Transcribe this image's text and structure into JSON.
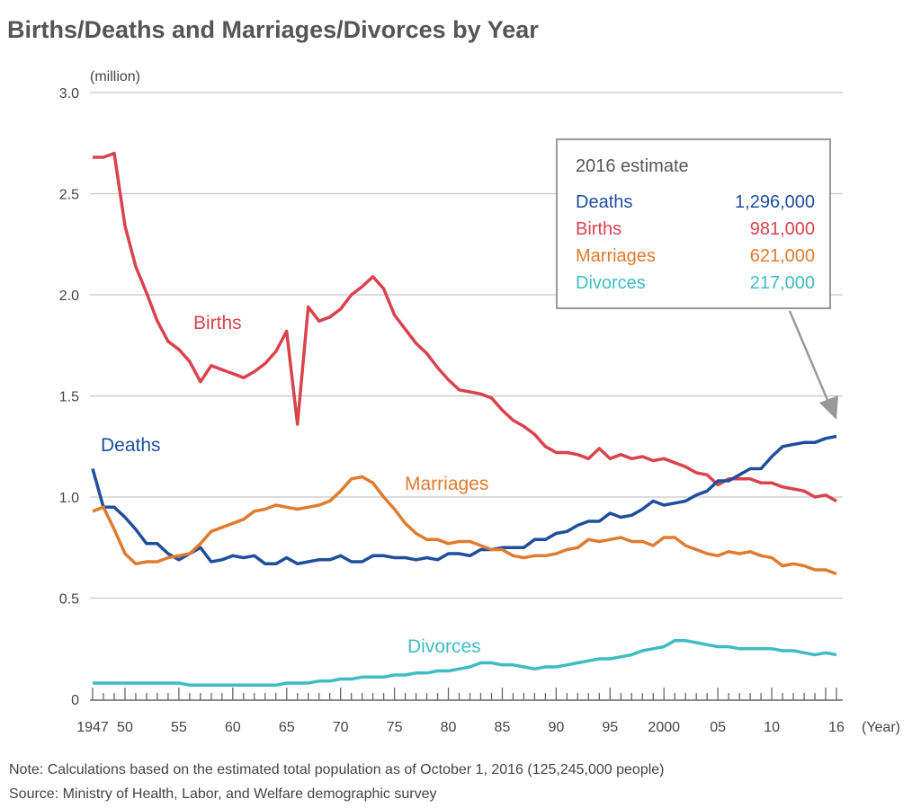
{
  "title": "Births/Deaths and Marriages/Divorces by Year",
  "note": "Note: Calculations based on the estimated total population as of October 1, 2016 (125,245,000 people)",
  "source": "Source: Ministry of Health, Labor, and Welfare demographic survey",
  "legend_box": {
    "heading": "2016 estimate",
    "rows": [
      {
        "label": "Deaths",
        "value": "1,296,000",
        "color": "#1f4e9c"
      },
      {
        "label": "Births",
        "value": "981,000",
        "color": "#d9434e"
      },
      {
        "label": "Marriages",
        "value": "621,000",
        "color": "#e07b2f"
      },
      {
        "label": "Divorces",
        "value": "217,000",
        "color": "#3fbcc2"
      }
    ]
  },
  "chart_data": {
    "type": "line",
    "title": "Births/Deaths and Marriages/Divorces by Year",
    "ylabel": "(million)",
    "xlabel": "(Year)",
    "ylim": [
      0,
      3.0
    ],
    "xlim": [
      1947,
      2016
    ],
    "grid": true,
    "yticks": [
      "0",
      "0.5",
      "1.0",
      "1.5",
      "2.0",
      "2.5",
      "3.0"
    ],
    "xtick_labels": [
      {
        "year": 1947,
        "label": "1947"
      },
      {
        "year": 1950,
        "label": "50"
      },
      {
        "year": 1955,
        "label": "55"
      },
      {
        "year": 1960,
        "label": "60"
      },
      {
        "year": 1965,
        "label": "65"
      },
      {
        "year": 1970,
        "label": "70"
      },
      {
        "year": 1975,
        "label": "75"
      },
      {
        "year": 1980,
        "label": "80"
      },
      {
        "year": 1985,
        "label": "85"
      },
      {
        "year": 1990,
        "label": "90"
      },
      {
        "year": 1995,
        "label": "95"
      },
      {
        "year": 2000,
        "label": "2000"
      },
      {
        "year": 2005,
        "label": "05"
      },
      {
        "year": 2010,
        "label": "10"
      },
      {
        "year": 2016,
        "label": "16"
      }
    ],
    "x_start": 1947,
    "series": [
      {
        "name": "Births",
        "color": "#d9434e",
        "values": [
          2.68,
          2.68,
          2.7,
          2.34,
          2.14,
          2.01,
          1.87,
          1.77,
          1.73,
          1.67,
          1.57,
          1.65,
          1.63,
          1.61,
          1.59,
          1.62,
          1.66,
          1.72,
          1.82,
          1.36,
          1.94,
          1.87,
          1.89,
          1.93,
          2.0,
          2.04,
          2.09,
          2.03,
          1.9,
          1.83,
          1.76,
          1.71,
          1.64,
          1.58,
          1.53,
          1.52,
          1.51,
          1.49,
          1.43,
          1.38,
          1.35,
          1.31,
          1.25,
          1.22,
          1.22,
          1.21,
          1.19,
          1.24,
          1.19,
          1.21,
          1.19,
          1.2,
          1.18,
          1.19,
          1.17,
          1.15,
          1.12,
          1.11,
          1.06,
          1.09,
          1.09,
          1.09,
          1.07,
          1.07,
          1.05,
          1.04,
          1.03,
          1.0,
          1.01,
          0.98
        ]
      },
      {
        "name": "Deaths",
        "color": "#1f4e9c",
        "values": [
          1.14,
          0.95,
          0.95,
          0.9,
          0.84,
          0.77,
          0.77,
          0.72,
          0.69,
          0.72,
          0.75,
          0.68,
          0.69,
          0.71,
          0.7,
          0.71,
          0.67,
          0.67,
          0.7,
          0.67,
          0.68,
          0.69,
          0.69,
          0.71,
          0.68,
          0.68,
          0.71,
          0.71,
          0.7,
          0.7,
          0.69,
          0.7,
          0.69,
          0.72,
          0.72,
          0.71,
          0.74,
          0.74,
          0.75,
          0.75,
          0.75,
          0.79,
          0.79,
          0.82,
          0.83,
          0.86,
          0.88,
          0.88,
          0.92,
          0.9,
          0.91,
          0.94,
          0.98,
          0.96,
          0.97,
          0.98,
          1.01,
          1.03,
          1.08,
          1.08,
          1.11,
          1.14,
          1.14,
          1.2,
          1.25,
          1.26,
          1.27,
          1.27,
          1.29,
          1.3
        ]
      },
      {
        "name": "Marriages",
        "color": "#e07b2f",
        "values": [
          0.93,
          0.95,
          0.84,
          0.72,
          0.67,
          0.68,
          0.68,
          0.7,
          0.71,
          0.72,
          0.77,
          0.83,
          0.85,
          0.87,
          0.89,
          0.93,
          0.94,
          0.96,
          0.95,
          0.94,
          0.95,
          0.96,
          0.98,
          1.03,
          1.09,
          1.1,
          1.07,
          1.0,
          0.94,
          0.87,
          0.82,
          0.79,
          0.79,
          0.77,
          0.78,
          0.78,
          0.76,
          0.74,
          0.74,
          0.71,
          0.7,
          0.71,
          0.71,
          0.72,
          0.74,
          0.75,
          0.79,
          0.78,
          0.79,
          0.8,
          0.78,
          0.78,
          0.76,
          0.8,
          0.8,
          0.76,
          0.74,
          0.72,
          0.71,
          0.73,
          0.72,
          0.73,
          0.71,
          0.7,
          0.66,
          0.67,
          0.66,
          0.64,
          0.64,
          0.62
        ]
      },
      {
        "name": "Divorces",
        "color": "#3fbcc2",
        "values": [
          0.08,
          0.08,
          0.08,
          0.08,
          0.08,
          0.08,
          0.08,
          0.08,
          0.08,
          0.07,
          0.07,
          0.07,
          0.07,
          0.07,
          0.07,
          0.07,
          0.07,
          0.07,
          0.08,
          0.08,
          0.08,
          0.09,
          0.09,
          0.1,
          0.1,
          0.11,
          0.11,
          0.11,
          0.12,
          0.12,
          0.13,
          0.13,
          0.14,
          0.14,
          0.15,
          0.16,
          0.18,
          0.18,
          0.17,
          0.17,
          0.16,
          0.15,
          0.16,
          0.16,
          0.17,
          0.18,
          0.19,
          0.2,
          0.2,
          0.21,
          0.22,
          0.24,
          0.25,
          0.26,
          0.29,
          0.29,
          0.28,
          0.27,
          0.26,
          0.26,
          0.25,
          0.25,
          0.25,
          0.25,
          0.24,
          0.24,
          0.23,
          0.22,
          0.23,
          0.22
        ]
      }
    ]
  }
}
